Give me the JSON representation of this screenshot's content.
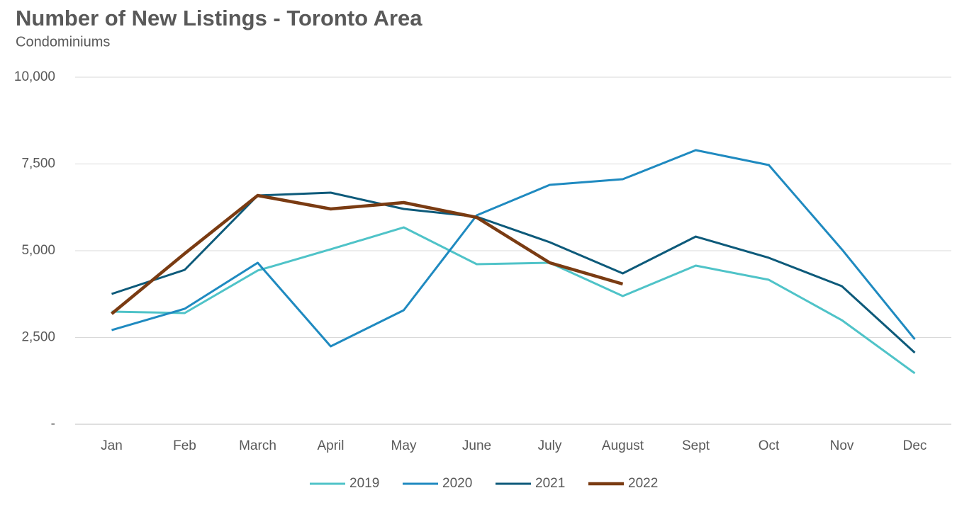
{
  "chart_data": {
    "type": "line",
    "title": "Number of New Listings - Toronto Area",
    "subtitle": "Condominiums",
    "categories": [
      "Jan",
      "Feb",
      "March",
      "April",
      "May",
      "June",
      "July",
      "August",
      "Sept",
      "Oct",
      "Nov",
      "Dec"
    ],
    "series": [
      {
        "name": "2019",
        "color": "#4fc3c8",
        "values": [
          3245,
          3204,
          4429,
          5041,
          5673,
          4612,
          4653,
          3694,
          4571,
          4163,
          3000,
          1469
        ]
      },
      {
        "name": "2020",
        "color": "#1f8ac0",
        "values": [
          2714,
          3327,
          4653,
          2245,
          3286,
          6020,
          6898,
          7061,
          7898,
          7469,
          5041,
          2449
        ]
      },
      {
        "name": "2021",
        "color": "#0d5a7a",
        "values": [
          3755,
          4449,
          6592,
          6673,
          6204,
          5980,
          5245,
          4347,
          5408,
          4796,
          3980,
          2061
        ]
      },
      {
        "name": "2022",
        "color": "#7a3b12",
        "values": [
          3184,
          4918,
          6592,
          6204,
          6388,
          5959,
          4653,
          4041,
          null,
          null,
          null,
          null
        ]
      }
    ],
    "ylim": [
      0,
      10000
    ],
    "yticks": [
      {
        "value": 0,
        "label": "-"
      },
      {
        "value": 2500,
        "label": "2,500"
      },
      {
        "value": 5000,
        "label": "5,000"
      },
      {
        "value": 7500,
        "label": "7,500"
      },
      {
        "value": 10000,
        "label": "10,000"
      }
    ],
    "grid": true,
    "legend": "bottom"
  }
}
